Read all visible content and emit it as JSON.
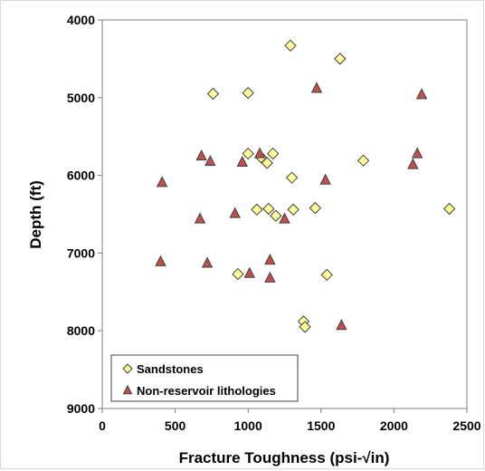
{
  "chart_data": {
    "type": "scatter",
    "title": "",
    "xlabel": "Fracture Toughness (psi-√in)",
    "ylabel": "Depth (ft)",
    "xlim": [
      0,
      2500
    ],
    "ylim": [
      9000,
      4000
    ],
    "y_inverted": true,
    "x_ticks": [
      "0",
      "500",
      "1000",
      "1500",
      "2000",
      "2500"
    ],
    "y_ticks": [
      "4000",
      "5000",
      "6000",
      "7000",
      "8000",
      "9000"
    ],
    "grid": false,
    "legend_position": "bottom-left",
    "series": [
      {
        "name": "Sandstones",
        "marker": "diamond",
        "color": "#ffff99",
        "edge_color": "#404040",
        "points": [
          [
            1290,
            4330
          ],
          [
            1630,
            4500
          ],
          [
            760,
            4950
          ],
          [
            1000,
            4940
          ],
          [
            1000,
            5720
          ],
          [
            1090,
            5770
          ],
          [
            1170,
            5720
          ],
          [
            1130,
            5840
          ],
          [
            1790,
            5810
          ],
          [
            1300,
            6030
          ],
          [
            1060,
            6440
          ],
          [
            1140,
            6430
          ],
          [
            1190,
            6520
          ],
          [
            1310,
            6440
          ],
          [
            1460,
            6420
          ],
          [
            2380,
            6430
          ],
          [
            930,
            7270
          ],
          [
            1540,
            7280
          ],
          [
            1380,
            7880
          ],
          [
            1390,
            7950
          ]
        ]
      },
      {
        "name": "Non-reservoir lithologies",
        "marker": "triangle",
        "color": "#c0504d",
        "edge_color": "#404040",
        "points": [
          [
            1470,
            4880
          ],
          [
            2190,
            4960
          ],
          [
            1080,
            5720
          ],
          [
            680,
            5750
          ],
          [
            740,
            5820
          ],
          [
            960,
            5830
          ],
          [
            2160,
            5720
          ],
          [
            2130,
            5860
          ],
          [
            410,
            6090
          ],
          [
            1530,
            6060
          ],
          [
            670,
            6560
          ],
          [
            910,
            6490
          ],
          [
            1250,
            6560
          ],
          [
            400,
            7110
          ],
          [
            720,
            7130
          ],
          [
            1150,
            7090
          ],
          [
            1010,
            7260
          ],
          [
            1150,
            7320
          ],
          [
            1640,
            7930
          ]
        ]
      }
    ]
  }
}
